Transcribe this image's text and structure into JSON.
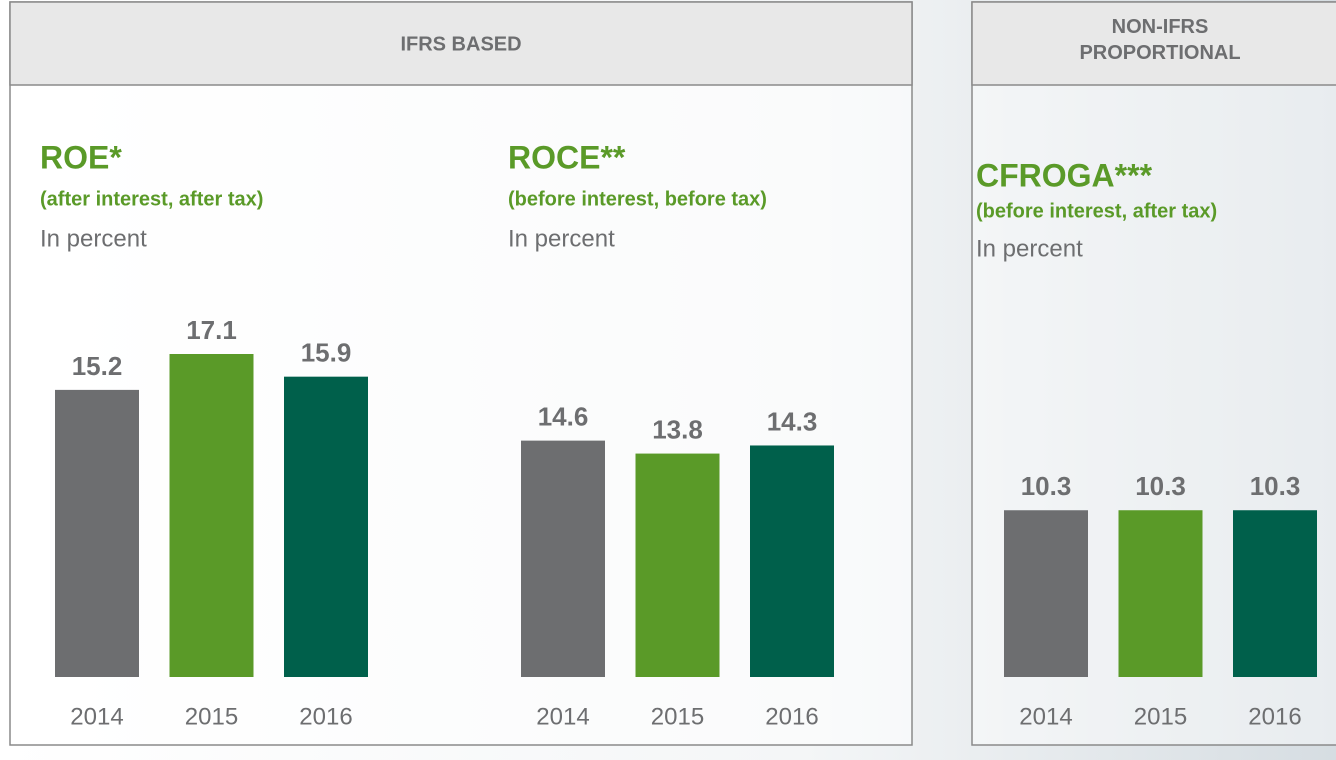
{
  "panels": [
    {
      "header": "IFRS BASED"
    },
    {
      "header": "NON-IFRS PROPORTIONAL"
    }
  ],
  "chart_data": [
    {
      "type": "bar",
      "title": "ROE*",
      "subtitle": "(after interest, after tax)",
      "y_label": "In percent",
      "categories": [
        "2014",
        "2015",
        "2016"
      ],
      "values": [
        15.2,
        17.1,
        15.9
      ],
      "colors": [
        "#6d6e70",
        "#5a9a28",
        "#00604b"
      ],
      "ylim": [
        0,
        18
      ]
    },
    {
      "type": "bar",
      "title": "ROCE**",
      "subtitle": "(before interest, before tax)",
      "y_label": "In percent",
      "categories": [
        "2014",
        "2015",
        "2016"
      ],
      "values": [
        14.6,
        13.8,
        14.3
      ],
      "colors": [
        "#6d6e70",
        "#5a9a28",
        "#00604b"
      ],
      "ylim": [
        0,
        21
      ]
    },
    {
      "type": "bar",
      "title": "CFROGA***",
      "subtitle": "(before interest, after tax)",
      "y_label": "In percent",
      "categories": [
        "2014",
        "2015",
        "2016"
      ],
      "values": [
        10.3,
        10.3,
        10.3
      ],
      "colors": [
        "#6d6e70",
        "#5a9a28",
        "#00604b"
      ],
      "ylim": [
        0,
        21
      ]
    }
  ]
}
